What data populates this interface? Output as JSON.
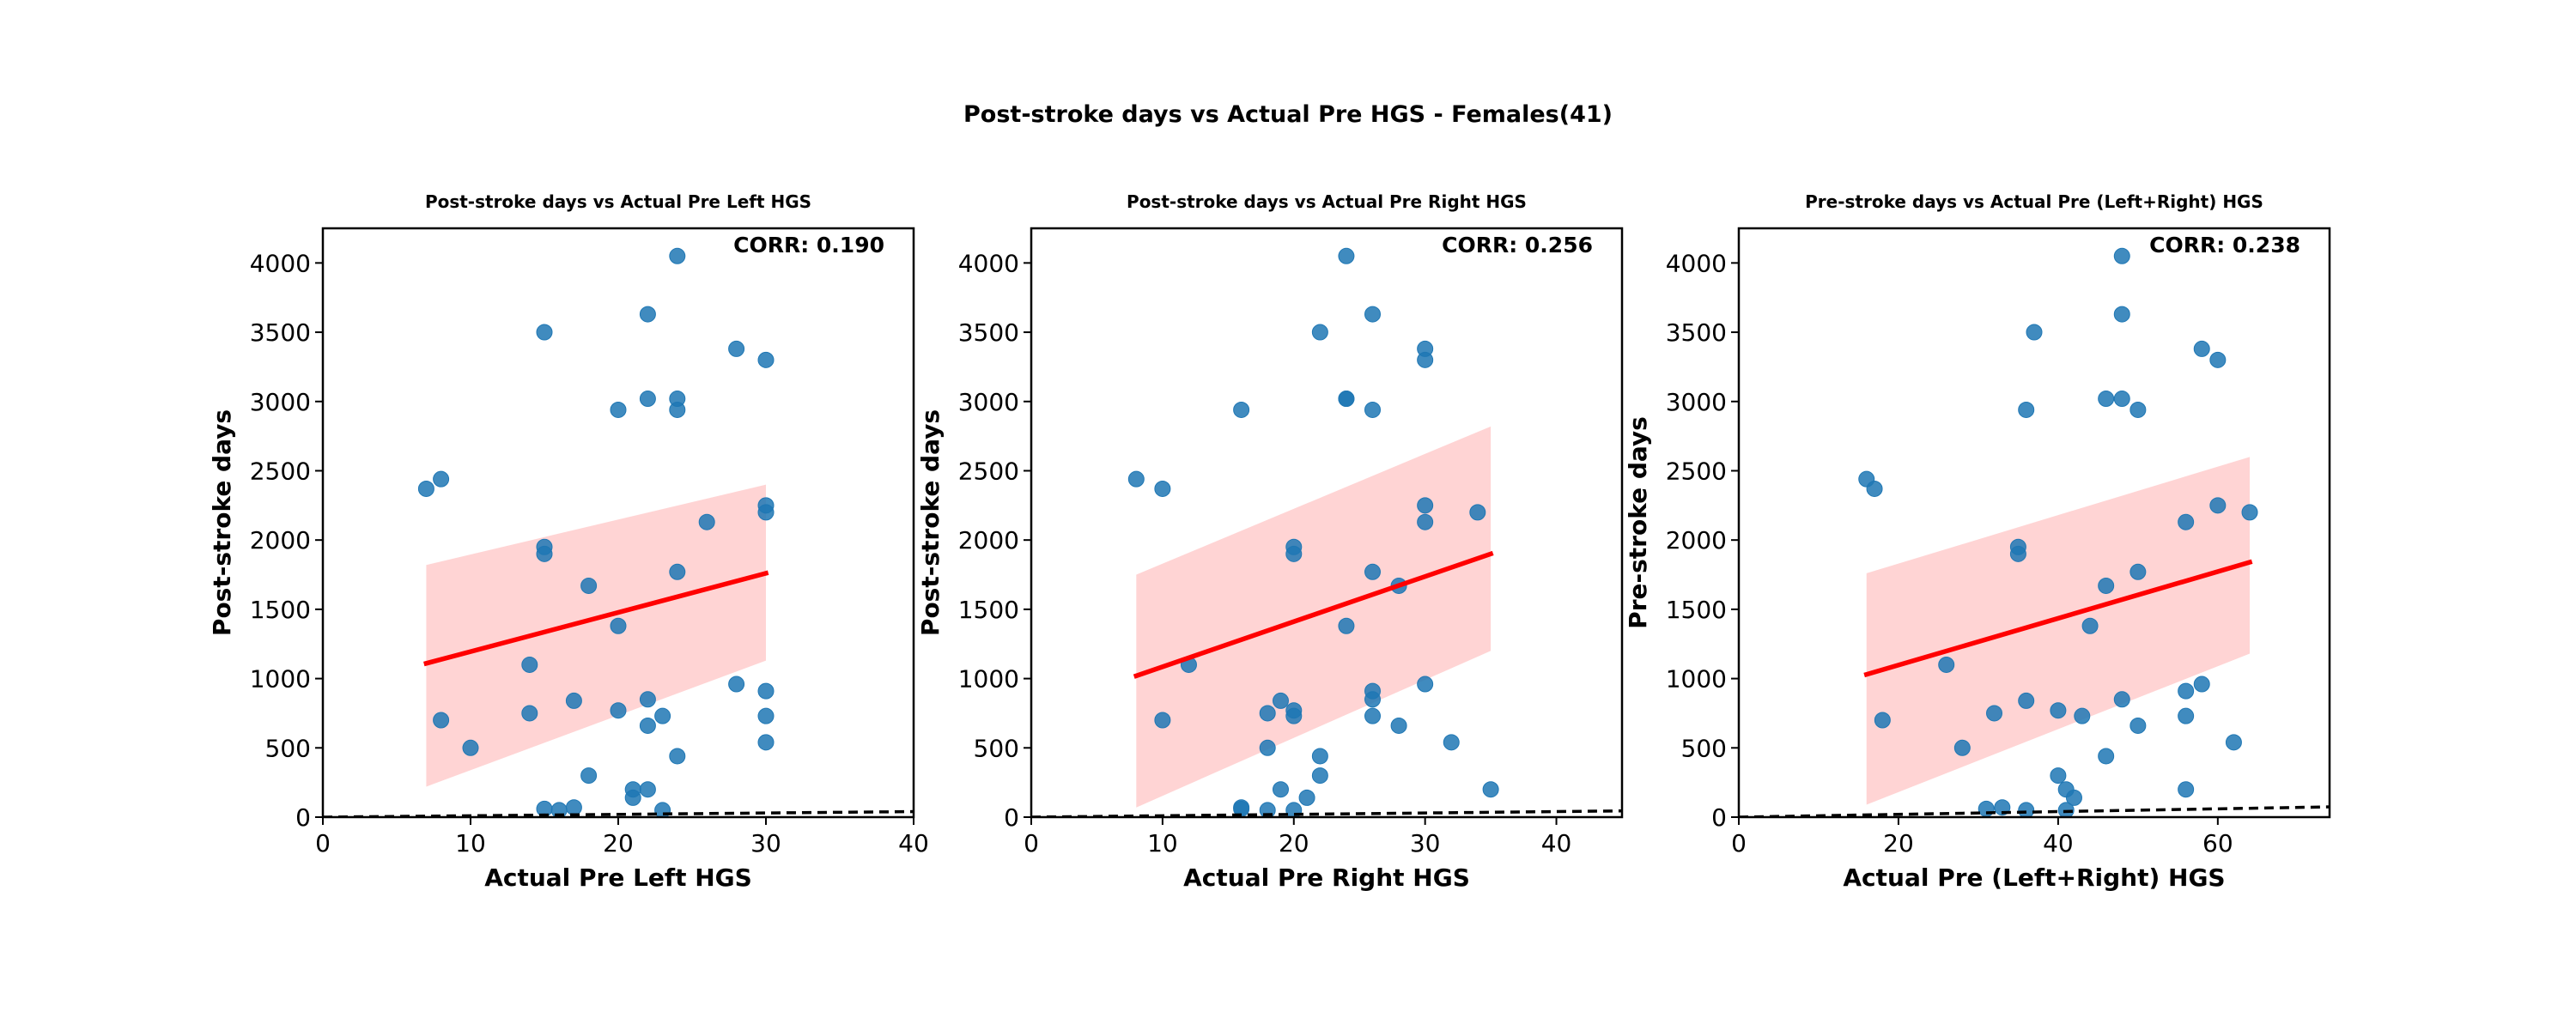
{
  "figure": {
    "suptitle": "Post-stroke days vs Actual Pre HGS - Females(41)",
    "colors": {
      "points": "#1f77b4",
      "regression_line": "#ff0000",
      "confidence_band": "#ffcccc",
      "identity_line": "#000000"
    }
  },
  "chart_data": [
    {
      "type": "scatter",
      "title": "Post-stroke days vs Actual Pre Left HGS",
      "xlabel": "Actual Pre Left HGS",
      "ylabel": "Post-stroke days",
      "xlim": [
        0,
        40
      ],
      "ylim": [
        0,
        4250
      ],
      "xticks": [
        "0",
        "10",
        "20",
        "30",
        "40"
      ],
      "yticks": [
        "0",
        "500",
        "1000",
        "1500",
        "2000",
        "2500",
        "3000",
        "3500",
        "4000"
      ],
      "grid": false,
      "annotation": "CORR: 0.190",
      "identity_line": true,
      "regression": {
        "x": [
          7,
          30
        ],
        "y": [
          1110,
          1760
        ],
        "ci_upper": [
          1820,
          2400
        ],
        "ci_lower": [
          220,
          1130
        ]
      },
      "points": [
        {
          "x": 7,
          "y": 2370
        },
        {
          "x": 8,
          "y": 2440
        },
        {
          "x": 8,
          "y": 700
        },
        {
          "x": 10,
          "y": 500
        },
        {
          "x": 14,
          "y": 1100
        },
        {
          "x": 14,
          "y": 750
        },
        {
          "x": 15,
          "y": 3500
        },
        {
          "x": 15,
          "y": 1950
        },
        {
          "x": 15,
          "y": 1900
        },
        {
          "x": 15,
          "y": 60
        },
        {
          "x": 16,
          "y": 50
        },
        {
          "x": 17,
          "y": 840
        },
        {
          "x": 17,
          "y": 70
        },
        {
          "x": 18,
          "y": 1670
        },
        {
          "x": 18,
          "y": 300
        },
        {
          "x": 20,
          "y": 2940
        },
        {
          "x": 20,
          "y": 1380
        },
        {
          "x": 20,
          "y": 770
        },
        {
          "x": 21,
          "y": 200
        },
        {
          "x": 21,
          "y": 140
        },
        {
          "x": 22,
          "y": 3630
        },
        {
          "x": 22,
          "y": 3020
        },
        {
          "x": 22,
          "y": 850
        },
        {
          "x": 22,
          "y": 660
        },
        {
          "x": 22,
          "y": 200
        },
        {
          "x": 23,
          "y": 730
        },
        {
          "x": 23,
          "y": 50
        },
        {
          "x": 24,
          "y": 4050
        },
        {
          "x": 24,
          "y": 3020
        },
        {
          "x": 24,
          "y": 2940
        },
        {
          "x": 24,
          "y": 1770
        },
        {
          "x": 24,
          "y": 440
        },
        {
          "x": 26,
          "y": 2130
        },
        {
          "x": 28,
          "y": 3380
        },
        {
          "x": 28,
          "y": 960
        },
        {
          "x": 30,
          "y": 3300
        },
        {
          "x": 30,
          "y": 2250
        },
        {
          "x": 30,
          "y": 2200
        },
        {
          "x": 30,
          "y": 910
        },
        {
          "x": 30,
          "y": 730
        },
        {
          "x": 30,
          "y": 540
        }
      ]
    },
    {
      "type": "scatter",
      "title": "Post-stroke days vs Actual Pre Right HGS",
      "xlabel": "Actual Pre Right HGS",
      "ylabel": "Post-stroke days",
      "xlim": [
        0,
        45
      ],
      "ylim": [
        0,
        4250
      ],
      "xticks": [
        "0",
        "10",
        "20",
        "30",
        "40"
      ],
      "yticks": [
        "0",
        "500",
        "1000",
        "1500",
        "2000",
        "2500",
        "3000",
        "3500",
        "4000"
      ],
      "grid": false,
      "annotation": "CORR: 0.256",
      "identity_line": true,
      "regression": {
        "x": [
          8,
          35
        ],
        "y": [
          1020,
          1900
        ],
        "ci_upper": [
          1750,
          2820
        ],
        "ci_lower": [
          70,
          1200
        ]
      },
      "points": [
        {
          "x": 8,
          "y": 2440
        },
        {
          "x": 10,
          "y": 2370
        },
        {
          "x": 10,
          "y": 700
        },
        {
          "x": 12,
          "y": 1100
        },
        {
          "x": 16,
          "y": 2940
        },
        {
          "x": 16,
          "y": 70
        },
        {
          "x": 16,
          "y": 60
        },
        {
          "x": 18,
          "y": 750
        },
        {
          "x": 18,
          "y": 500
        },
        {
          "x": 18,
          "y": 50
        },
        {
          "x": 19,
          "y": 840
        },
        {
          "x": 19,
          "y": 200
        },
        {
          "x": 20,
          "y": 1950
        },
        {
          "x": 20,
          "y": 1900
        },
        {
          "x": 20,
          "y": 770
        },
        {
          "x": 20,
          "y": 730
        },
        {
          "x": 20,
          "y": 50
        },
        {
          "x": 21,
          "y": 140
        },
        {
          "x": 22,
          "y": 3500
        },
        {
          "x": 22,
          "y": 440
        },
        {
          "x": 22,
          "y": 300
        },
        {
          "x": 24,
          "y": 4050
        },
        {
          "x": 24,
          "y": 3020
        },
        {
          "x": 24,
          "y": 3020
        },
        {
          "x": 24,
          "y": 1380
        },
        {
          "x": 26,
          "y": 3630
        },
        {
          "x": 26,
          "y": 2940
        },
        {
          "x": 26,
          "y": 1770
        },
        {
          "x": 26,
          "y": 910
        },
        {
          "x": 26,
          "y": 850
        },
        {
          "x": 26,
          "y": 730
        },
        {
          "x": 28,
          "y": 1670
        },
        {
          "x": 28,
          "y": 660
        },
        {
          "x": 30,
          "y": 3380
        },
        {
          "x": 30,
          "y": 3300
        },
        {
          "x": 30,
          "y": 2250
        },
        {
          "x": 30,
          "y": 2130
        },
        {
          "x": 30,
          "y": 960
        },
        {
          "x": 32,
          "y": 540
        },
        {
          "x": 34,
          "y": 2200
        },
        {
          "x": 35,
          "y": 200
        }
      ]
    },
    {
      "type": "scatter",
      "title": "Pre-stroke days vs Actual Pre (Left+Right) HGS",
      "xlabel": "Actual Pre (Left+Right) HGS",
      "ylabel": "Pre-stroke days",
      "xlim": [
        0,
        74
      ],
      "ylim": [
        0,
        4250
      ],
      "xticks": [
        "0",
        "20",
        "40",
        "60"
      ],
      "yticks": [
        "0",
        "500",
        "1000",
        "1500",
        "2000",
        "2500",
        "3000",
        "3500",
        "4000"
      ],
      "grid": false,
      "annotation": "CORR: 0.238",
      "identity_line": true,
      "regression": {
        "x": [
          16,
          64
        ],
        "y": [
          1030,
          1840
        ],
        "ci_upper": [
          1760,
          2600
        ],
        "ci_lower": [
          90,
          1180
        ]
      },
      "points": [
        {
          "x": 16,
          "y": 2440
        },
        {
          "x": 17,
          "y": 2370
        },
        {
          "x": 18,
          "y": 700
        },
        {
          "x": 26,
          "y": 1100
        },
        {
          "x": 28,
          "y": 500
        },
        {
          "x": 31,
          "y": 60
        },
        {
          "x": 32,
          "y": 750
        },
        {
          "x": 33,
          "y": 70
        },
        {
          "x": 35,
          "y": 1950
        },
        {
          "x": 35,
          "y": 1900
        },
        {
          "x": 36,
          "y": 2940
        },
        {
          "x": 36,
          "y": 840
        },
        {
          "x": 36,
          "y": 50
        },
        {
          "x": 37,
          "y": 3500
        },
        {
          "x": 40,
          "y": 770
        },
        {
          "x": 40,
          "y": 300
        },
        {
          "x": 41,
          "y": 200
        },
        {
          "x": 41,
          "y": 50
        },
        {
          "x": 42,
          "y": 140
        },
        {
          "x": 43,
          "y": 730
        },
        {
          "x": 44,
          "y": 1380
        },
        {
          "x": 46,
          "y": 3020
        },
        {
          "x": 46,
          "y": 1670
        },
        {
          "x": 46,
          "y": 440
        },
        {
          "x": 48,
          "y": 4050
        },
        {
          "x": 48,
          "y": 3630
        },
        {
          "x": 48,
          "y": 3020
        },
        {
          "x": 48,
          "y": 850
        },
        {
          "x": 50,
          "y": 2940
        },
        {
          "x": 50,
          "y": 1770
        },
        {
          "x": 50,
          "y": 660
        },
        {
          "x": 56,
          "y": 2130
        },
        {
          "x": 56,
          "y": 910
        },
        {
          "x": 56,
          "y": 730
        },
        {
          "x": 56,
          "y": 200
        },
        {
          "x": 58,
          "y": 3380
        },
        {
          "x": 58,
          "y": 960
        },
        {
          "x": 60,
          "y": 3300
        },
        {
          "x": 60,
          "y": 2250
        },
        {
          "x": 62,
          "y": 540
        },
        {
          "x": 64,
          "y": 2200
        }
      ]
    }
  ]
}
